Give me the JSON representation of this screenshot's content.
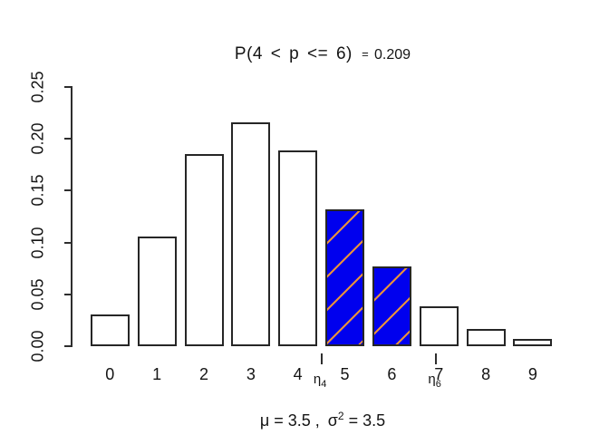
{
  "figure": {
    "title": {
      "expr": "P(4 < p <= 6)",
      "eq": "=",
      "result": "0.209"
    },
    "subtitle": {
      "left": "μ = 3.5 ,",
      "sigma": "σ",
      "sigma_sup": "2",
      "right": " = 3.5"
    }
  },
  "chart_data": {
    "type": "bar",
    "title": "P(4 < p <= 6) = 0.209",
    "subtitle": "μ = 3.5 , σ² = 3.5",
    "categories": [
      "0",
      "1",
      "2",
      "3",
      "4",
      "5",
      "6",
      "7",
      "8",
      "9"
    ],
    "values": [
      0.0302,
      0.1057,
      0.185,
      0.2158,
      0.1888,
      0.1322,
      0.0771,
      0.0385,
      0.0169,
      0.0066
    ],
    "highlighted_categories": [
      5,
      6
    ],
    "highlight_probability": 0.209,
    "xlabel": "",
    "ylabel": "",
    "ylim": [
      0,
      0.25
    ],
    "yticks": [
      "0.00",
      "0.05",
      "0.10",
      "0.15",
      "0.20",
      "0.25"
    ],
    "grid": false,
    "legend": "none",
    "bar_fill_default": "#ffffff",
    "bar_border_color": "#262626",
    "highlight_fill": "#0000ee",
    "hatch_color": "#e8913c",
    "annotations": [
      {
        "text": "η",
        "sub": "4",
        "x": 4.5
      },
      {
        "text": "η",
        "sub": "6",
        "x": 6.94
      }
    ]
  }
}
